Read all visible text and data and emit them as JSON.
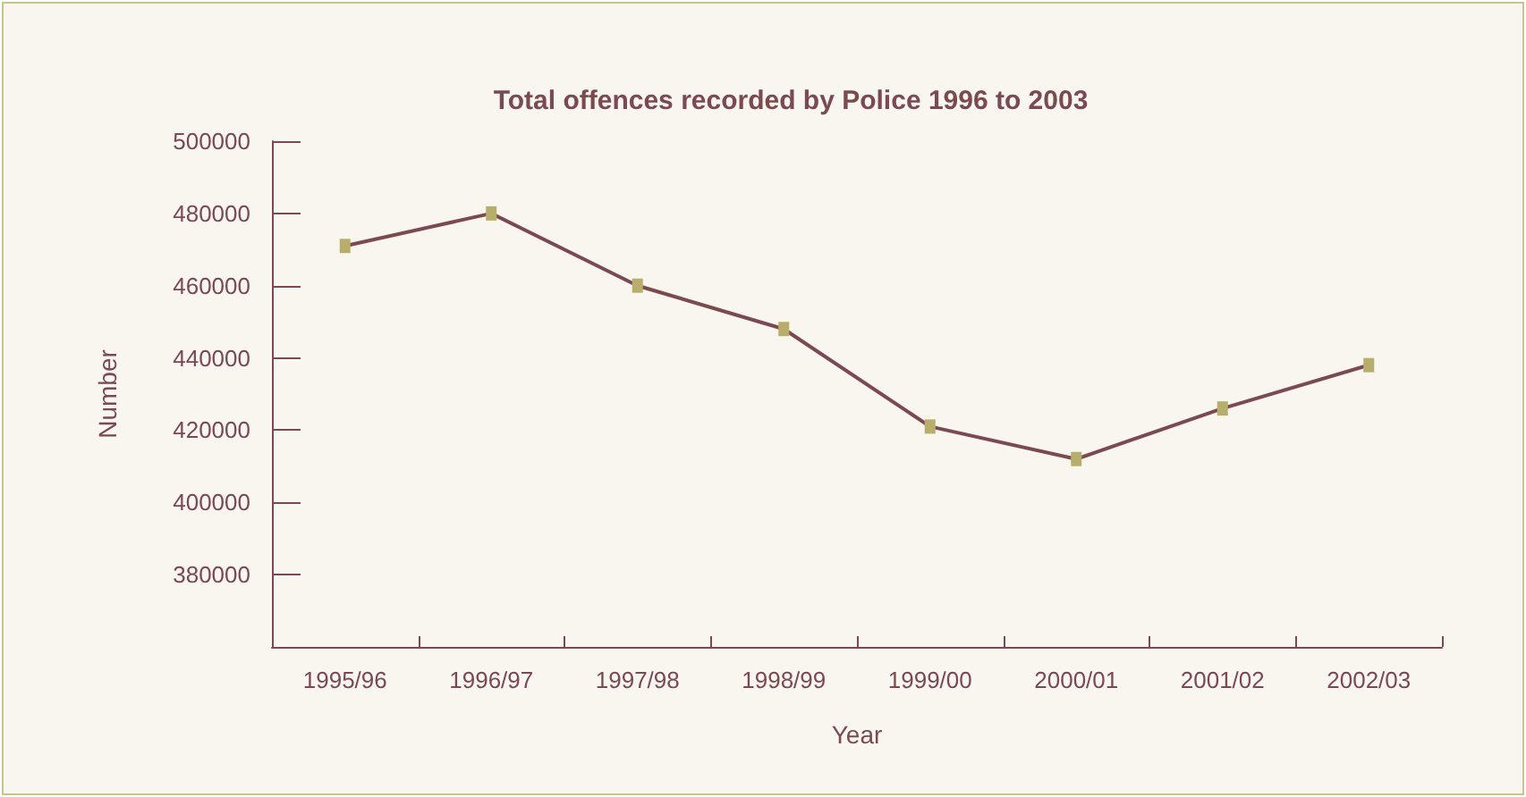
{
  "chart_data": {
    "type": "line",
    "title": "Total offences recorded by Police 1996 to 2003",
    "xlabel": "Year",
    "ylabel": "Number",
    "categories": [
      "1995/96",
      "1996/97",
      "1997/98",
      "1998/99",
      "1999/00",
      "2000/01",
      "2001/02",
      "2002/03"
    ],
    "series": [
      {
        "color": "#7a4a4e",
        "values": [
          471000,
          480000,
          460000,
          448000,
          421000,
          412000,
          426000,
          438000
        ]
      }
    ],
    "ylim": [
      360000,
      500000
    ],
    "yticks": [
      {
        "value": 360000,
        "label": null
      },
      380000,
      400000,
      420000,
      440000,
      460000,
      480000,
      500000
    ],
    "grid": false,
    "marker": "square",
    "line_style": "solid"
  }
}
